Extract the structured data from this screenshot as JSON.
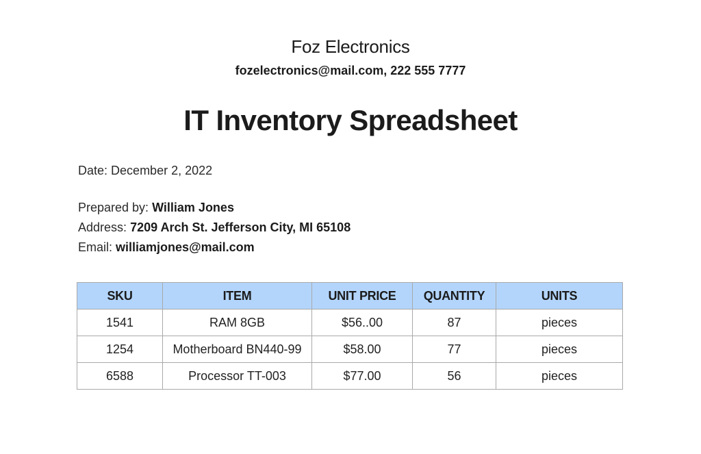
{
  "header": {
    "company_name": "Foz Electronics",
    "company_contact": "fozelectronics@mail.com, 222 555 7777",
    "title": "IT Inventory Spreadsheet"
  },
  "meta": {
    "date_label": "Date:",
    "date_value": "December 2, 2022",
    "prepared_label": "Prepared by:",
    "prepared_value": "William Jones",
    "address_label": "Address:",
    "address_value": "7209 Arch St. Jefferson City, MI 65108",
    "email_label": "Email:",
    "email_value": "williamjones@mail.com"
  },
  "table": {
    "header_bg": "#b3d5fc",
    "border_color": "#a9a9a9",
    "columns": [
      "SKU",
      "ITEM",
      "UNIT PRICE",
      "QUANTITY",
      "UNITS"
    ],
    "rows": [
      {
        "sku": "1541",
        "item": "RAM 8GB",
        "unit_price": "$56..00",
        "quantity": "87",
        "units": "pieces"
      },
      {
        "sku": "1254",
        "item": "Motherboard BN440-99",
        "unit_price": "$58.00",
        "quantity": "77",
        "units": "pieces"
      },
      {
        "sku": "6588",
        "item": "Processor TT-003",
        "unit_price": "$77.00",
        "quantity": "56",
        "units": "pieces"
      }
    ]
  }
}
